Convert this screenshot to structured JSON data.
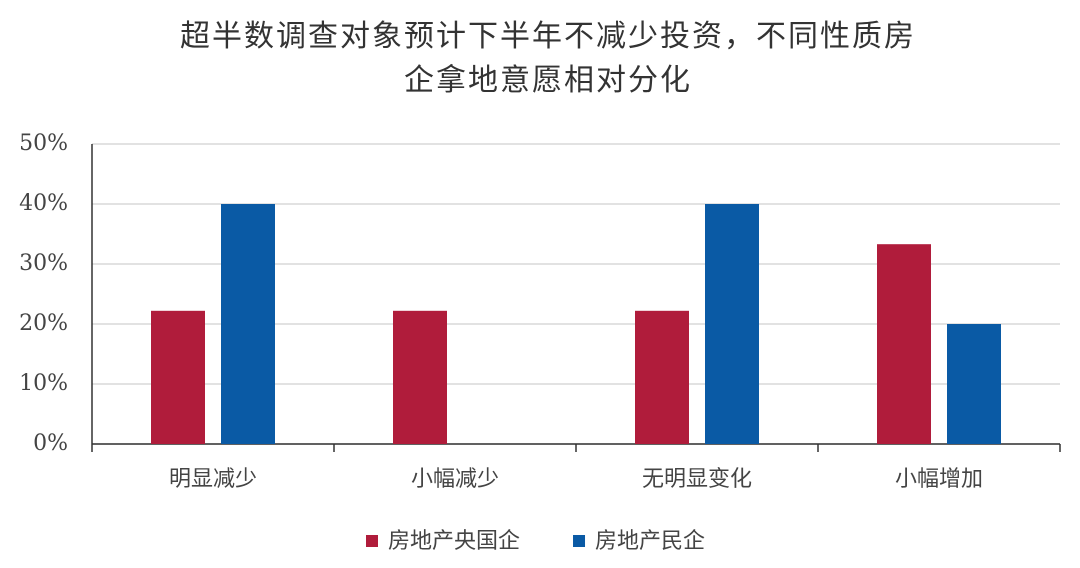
{
  "chart_data": {
    "type": "bar",
    "title": [
      "超半数调查对象预计下半年不减少投资，不同性质房",
      "企拿地意愿相对分化"
    ],
    "categories": [
      "明显减少",
      "小幅减少",
      "无明显变化",
      "小幅增加"
    ],
    "series": [
      {
        "name": "房地产央国企",
        "color": "#b01c3b",
        "values": [
          22.2,
          22.2,
          22.2,
          33.3
        ]
      },
      {
        "name": "房地产民企",
        "color": "#0a5aa5",
        "values": [
          40,
          0,
          40,
          20
        ]
      }
    ],
    "ylim": [
      0,
      50
    ],
    "yticks": [
      {
        "value": 0,
        "label": "0%"
      },
      {
        "value": 10,
        "label": "10%"
      },
      {
        "value": 20,
        "label": "20%"
      },
      {
        "value": 30,
        "label": "30%"
      },
      {
        "value": 40,
        "label": "40%"
      },
      {
        "value": 50,
        "label": "50%"
      }
    ],
    "grid": true,
    "legend": "bottom"
  }
}
